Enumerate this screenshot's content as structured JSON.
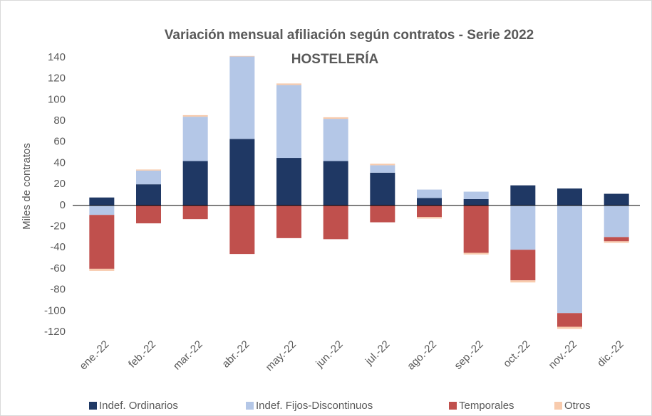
{
  "chart_data": {
    "type": "bar",
    "stacked": true,
    "title": "Variación mensual afiliación según contratos - Serie 2022",
    "subtitle": "HOSTELERÍA",
    "y_label": "Miles de contratos",
    "categories": [
      "ene.-22",
      "feb.-22",
      "mar.-22",
      "abr.-22",
      "may.-22",
      "jun.-22",
      "jul.-22",
      "ago.-22",
      "sep.-22",
      "oct.-22",
      "nov.-22",
      "dic.-22"
    ],
    "series": [
      {
        "name": "Indef. Ordinarios",
        "color": "#1f3864",
        "values": [
          7.5,
          20,
          42,
          63,
          45,
          42,
          31,
          7,
          6,
          19,
          16,
          11
        ]
      },
      {
        "name": "Indef. Fijos-Discontinuos",
        "color": "#b4c7e7",
        "values": [
          -9,
          13,
          42,
          78,
          69,
          40,
          7,
          8,
          7,
          -42,
          -102,
          -30
        ]
      },
      {
        "name": "Temporales",
        "color": "#c0504d",
        "values": [
          -51,
          -17,
          -13,
          -46,
          -31,
          -32,
          -16,
          -11,
          -45,
          -29,
          -13,
          -4
        ]
      },
      {
        "name": "Otros",
        "color": "#f8cbad",
        "values": [
          -2,
          1,
          1.5,
          0.5,
          1.5,
          1.5,
          1.5,
          -1.5,
          -1.5,
          -2,
          -2,
          -1.5
        ]
      }
    ],
    "ylim": [
      -120,
      140
    ],
    "yticks": [
      -120,
      -100,
      -80,
      -60,
      -40,
      -20,
      0,
      20,
      40,
      60,
      80,
      100,
      120,
      140
    ],
    "legend": "bottom"
  }
}
